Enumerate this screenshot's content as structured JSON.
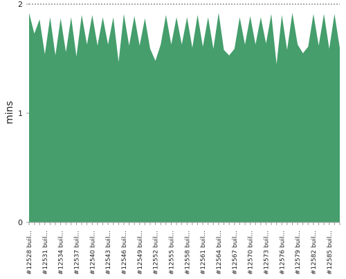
{
  "chart_data": {
    "type": "area",
    "title": "",
    "xlabel": "",
    "ylabel": "mins",
    "ylim": [
      0,
      2
    ],
    "y_ticks": [
      0,
      1,
      2
    ],
    "grid": true,
    "legend": "none",
    "colors": {
      "area": "#459e6c",
      "grid": "#555555",
      "axis": "#999999",
      "text": "#222222"
    },
    "x_tick_labels": [
      "#12528 buil...",
      "#12531 buil...",
      "#12534 buil...",
      "#12537 buil...",
      "#12540 buil...",
      "#12543 buil...",
      "#12546 buil...",
      "#12549 buil...",
      "#12552 buil...",
      "#12555 buil...",
      "#12558 buil...",
      "#12561 buil...",
      "#12564 buil...",
      "#12567 buil...",
      "#12570 buil...",
      "#12573 buil...",
      "#12576 buil...",
      "#12579 buil...",
      "#12582 buil...",
      "#12585 buil..."
    ],
    "values": [
      1.92,
      1.73,
      1.86,
      1.54,
      1.88,
      1.53,
      1.87,
      1.56,
      1.88,
      1.52,
      1.9,
      1.63,
      1.9,
      1.62,
      1.88,
      1.63,
      1.88,
      1.47,
      1.91,
      1.62,
      1.89,
      1.62,
      1.87,
      1.59,
      1.48,
      1.63,
      1.9,
      1.63,
      1.88,
      1.63,
      1.88,
      1.6,
      1.9,
      1.61,
      1.88,
      1.59,
      1.92,
      1.58,
      1.53,
      1.59,
      1.88,
      1.63,
      1.89,
      1.63,
      1.88,
      1.64,
      1.91,
      1.45,
      1.9,
      1.58,
      1.92,
      1.63,
      1.55,
      1.61,
      1.91,
      1.62,
      1.91,
      1.59,
      1.91,
      1.6
    ]
  }
}
